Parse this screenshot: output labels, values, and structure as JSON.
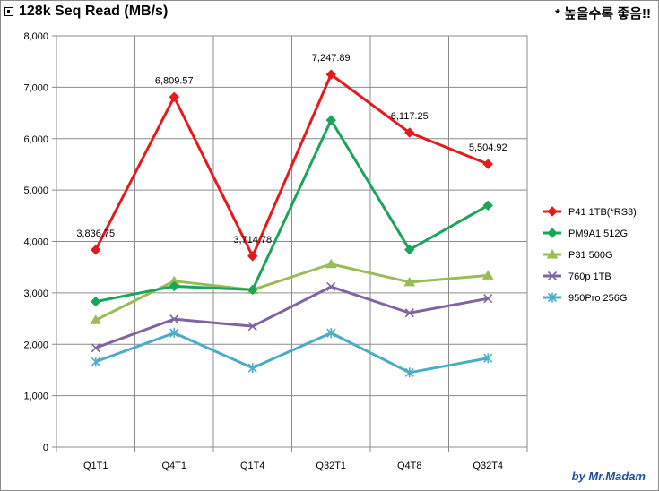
{
  "header": {
    "title": "128k Seq Read (MB/s)",
    "note": "* 높을수록 좋음!!",
    "credit": "by Mr.Madam"
  },
  "chart_data": {
    "type": "line",
    "title": "128k Seq Read (MB/s)",
    "categories": [
      "Q1T1",
      "Q4T1",
      "Q1T4",
      "Q32T1",
      "Q4T8",
      "Q32T4"
    ],
    "ylim": [
      0,
      8000
    ],
    "yticks": [
      0,
      1000,
      2000,
      3000,
      4000,
      5000,
      6000,
      7000,
      8000
    ],
    "ytick_labels": [
      "0",
      "1,000",
      "2,000",
      "3,000",
      "4,000",
      "5,000",
      "6,000",
      "7,000",
      "8,000"
    ],
    "grid": true,
    "legend_position": "right",
    "series": [
      {
        "name": "P41 1TB(*RS3)",
        "color": "#e41a1c",
        "marker": "diamond",
        "values": [
          3836.75,
          6809.57,
          3714.78,
          7247.89,
          6117.25,
          5504.92
        ],
        "labels": [
          "3,836.75",
          "6,809.57",
          "3,714.78",
          "7,247.89",
          "6,117.25",
          "5,504.92"
        ]
      },
      {
        "name": "PM9A1 512G",
        "color": "#1aa55a",
        "marker": "diamond",
        "values": [
          2830,
          3130,
          3060,
          6360,
          3840,
          4700
        ]
      },
      {
        "name": "P31 500G",
        "color": "#9bbb59",
        "marker": "triangle",
        "values": [
          2470,
          3230,
          3060,
          3560,
          3210,
          3340
        ]
      },
      {
        "name": "760p 1TB",
        "color": "#8064a2",
        "marker": "x",
        "values": [
          1930,
          2490,
          2350,
          3120,
          2610,
          2890
        ]
      },
      {
        "name": "950Pro 256G",
        "color": "#4bacc6",
        "marker": "star",
        "values": [
          1660,
          2220,
          1540,
          2220,
          1450,
          1730
        ]
      }
    ]
  }
}
